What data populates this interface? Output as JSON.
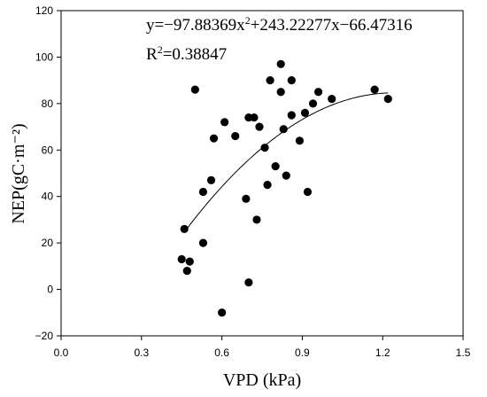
{
  "chart_data": {
    "type": "scatter",
    "xlabel": "VPD (kPa)",
    "ylabel": "NEP(gC·m⁻²)",
    "xlim": [
      0,
      1.5
    ],
    "ylim": [
      -20,
      120
    ],
    "x_ticks": [
      "0.0",
      "0.3",
      "0.6",
      "0.9",
      "1.2",
      "1.5"
    ],
    "y_ticks": [
      "−20",
      "0",
      "20",
      "40",
      "60",
      "80",
      "100",
      "120"
    ],
    "grid": false,
    "points": [
      {
        "x": 0.45,
        "y": 13
      },
      {
        "x": 0.46,
        "y": 26
      },
      {
        "x": 0.47,
        "y": 8
      },
      {
        "x": 0.48,
        "y": 12
      },
      {
        "x": 0.5,
        "y": 86
      },
      {
        "x": 0.53,
        "y": 20
      },
      {
        "x": 0.53,
        "y": 42
      },
      {
        "x": 0.56,
        "y": 47
      },
      {
        "x": 0.57,
        "y": 65
      },
      {
        "x": 0.6,
        "y": -10
      },
      {
        "x": 0.61,
        "y": 72
      },
      {
        "x": 0.65,
        "y": 66
      },
      {
        "x": 0.69,
        "y": 39
      },
      {
        "x": 0.7,
        "y": 3
      },
      {
        "x": 0.7,
        "y": 74
      },
      {
        "x": 0.72,
        "y": 74
      },
      {
        "x": 0.73,
        "y": 30
      },
      {
        "x": 0.74,
        "y": 70
      },
      {
        "x": 0.76,
        "y": 61
      },
      {
        "x": 0.77,
        "y": 45
      },
      {
        "x": 0.78,
        "y": 90
      },
      {
        "x": 0.8,
        "y": 53
      },
      {
        "x": 0.82,
        "y": 97
      },
      {
        "x": 0.82,
        "y": 85
      },
      {
        "x": 0.83,
        "y": 69
      },
      {
        "x": 0.84,
        "y": 49
      },
      {
        "x": 0.86,
        "y": 75
      },
      {
        "x": 0.86,
        "y": 90
      },
      {
        "x": 0.89,
        "y": 64
      },
      {
        "x": 0.91,
        "y": 76
      },
      {
        "x": 0.92,
        "y": 42
      },
      {
        "x": 0.94,
        "y": 80
      },
      {
        "x": 0.96,
        "y": 85
      },
      {
        "x": 1.01,
        "y": 82
      },
      {
        "x": 1.17,
        "y": 86
      },
      {
        "x": 1.22,
        "y": 82
      }
    ],
    "fit": {
      "type": "quadratic",
      "a": -97.88369,
      "b": 243.22277,
      "c": -66.47316,
      "x_range": [
        0.46,
        1.22
      ]
    },
    "equation": {
      "lead": "y=−97.88369x",
      "exp": "2",
      "tail": "+243.22277x−66.47316"
    },
    "r2": {
      "lead": "R",
      "exp": "2",
      "tail": "=0.38847"
    }
  }
}
